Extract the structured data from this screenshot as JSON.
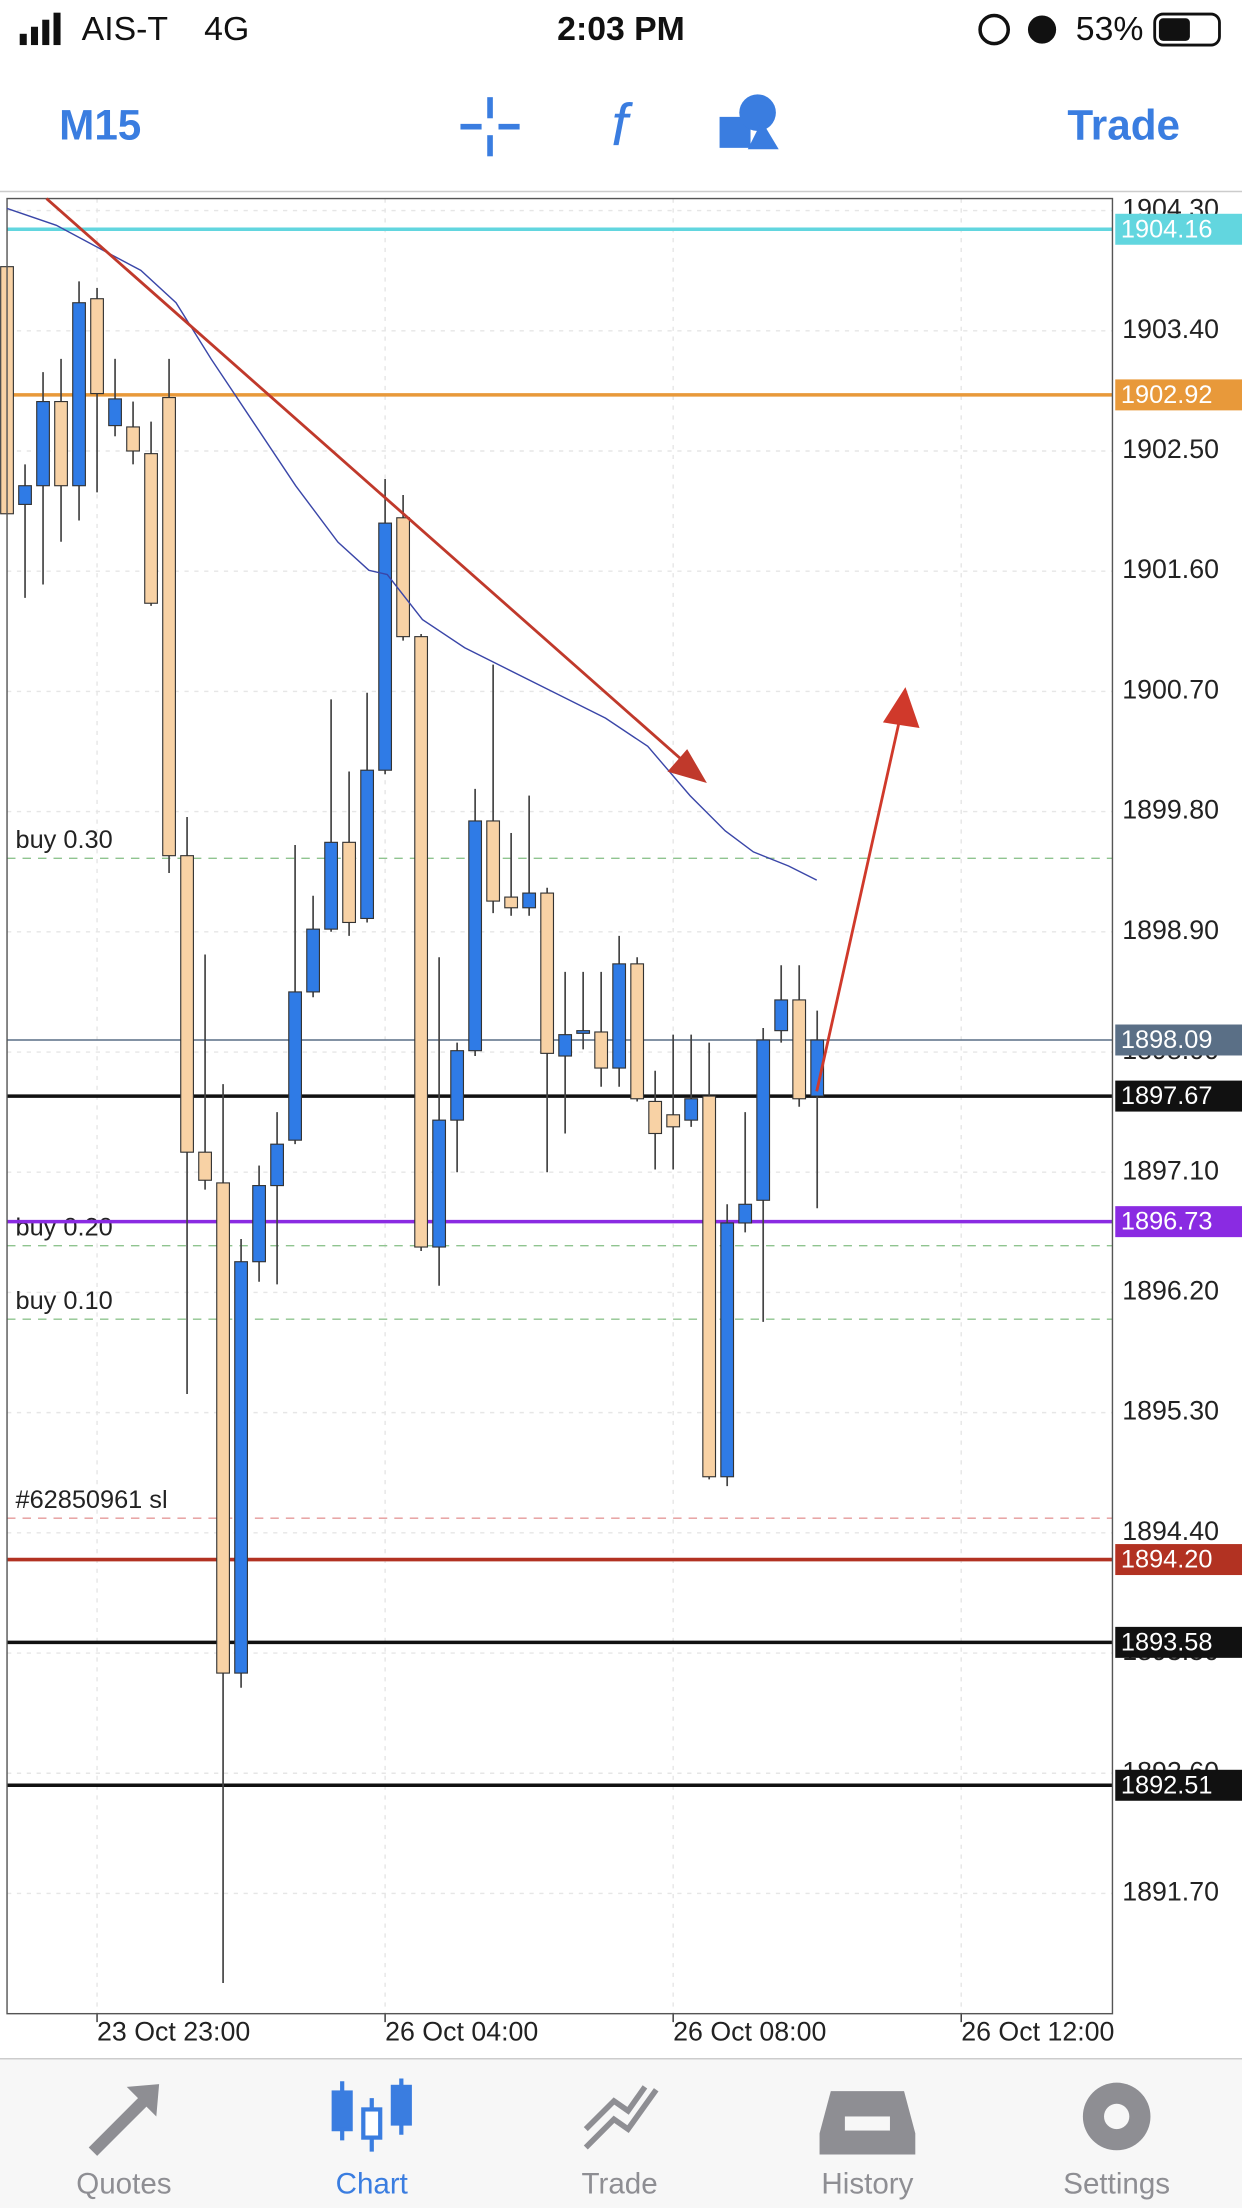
{
  "status_bar": {
    "carrier": "AIS-T",
    "network": "4G",
    "time": "2:03 PM",
    "battery": "53%"
  },
  "toolbar": {
    "timeframe": "M15",
    "trade": "Trade"
  },
  "chart_data": {
    "type": "candlestick",
    "up_color": "#2f7be6",
    "down_color": "#f8d2a5",
    "open": [
      1903.88,
      1902.1,
      1902.24,
      1902.87,
      1902.24,
      1903.64,
      1902.69,
      1902.68,
      1902.48,
      1902.9,
      1899.47,
      1897.25,
      1897.02,
      1893.35,
      1896.43,
      1897.0,
      1897.34,
      1898.45,
      1898.92,
      1899.57,
      1899.0,
      1900.11,
      1902.0,
      1901.11,
      1896.54,
      1897.49,
      1898.01,
      1899.73,
      1899.16,
      1899.08,
      1899.19,
      1897.97,
      1898.14,
      1898.15,
      1897.88,
      1898.66,
      1897.63,
      1897.53,
      1897.49,
      1897.67,
      1894.82,
      1896.72,
      1896.89,
      1898.16,
      1898.39,
      1897.67
    ],
    "high": [
      1903.88,
      1902.4,
      1903.09,
      1903.19,
      1903.77,
      1903.72,
      1903.19,
      1902.87,
      1902.72,
      1903.19,
      1899.76,
      1898.73,
      1897.76,
      1896.6,
      1897.15,
      1897.55,
      1899.55,
      1899.17,
      1900.64,
      1900.1,
      1900.69,
      1902.29,
      1902.17,
      1901.13,
      1898.71,
      1898.07,
      1899.97,
      1900.9,
      1899.64,
      1899.92,
      1899.23,
      1898.6,
      1898.6,
      1898.6,
      1898.87,
      1898.71,
      1897.86,
      1898.13,
      1898.13,
      1898.07,
      1896.86,
      1897.55,
      1898.18,
      1898.65,
      1898.65,
      1898.31
    ],
    "low": [
      1902.03,
      1901.4,
      1901.5,
      1901.82,
      1901.98,
      1902.19,
      1902.61,
      1902.4,
      1901.34,
      1899.34,
      1895.44,
      1896.97,
      1891.03,
      1893.24,
      1896.28,
      1896.26,
      1897.31,
      1898.41,
      1898.9,
      1898.87,
      1898.97,
      1900.08,
      1901.08,
      1896.51,
      1896.25,
      1897.1,
      1897.97,
      1899.04,
      1899.02,
      1899.02,
      1897.1,
      1897.39,
      1898.02,
      1897.74,
      1897.74,
      1897.63,
      1897.12,
      1897.12,
      1897.44,
      1894.8,
      1894.75,
      1896.65,
      1895.98,
      1898.07,
      1897.59,
      1896.83
    ],
    "close": [
      1902.03,
      1902.24,
      1902.87,
      1902.24,
      1903.61,
      1902.93,
      1902.89,
      1902.5,
      1901.36,
      1899.47,
      1897.25,
      1897.04,
      1893.35,
      1896.43,
      1897.0,
      1897.31,
      1898.45,
      1898.92,
      1899.57,
      1898.97,
      1900.11,
      1901.96,
      1901.11,
      1896.54,
      1897.49,
      1898.01,
      1899.73,
      1899.13,
      1899.08,
      1899.19,
      1897.99,
      1898.13,
      1898.16,
      1897.88,
      1898.66,
      1897.65,
      1897.39,
      1897.44,
      1897.65,
      1894.82,
      1896.72,
      1896.86,
      1898.09,
      1898.39,
      1897.65,
      1898.09
    ],
    "ylim": [
      1890.8,
      1904.39
    ],
    "yticks": [
      {
        "value": 1904.3,
        "label": "1904.30"
      },
      {
        "value": 1903.4,
        "label": "1903.40"
      },
      {
        "value": 1902.5,
        "label": "1902.50"
      },
      {
        "value": 1901.6,
        "label": "1901.60"
      },
      {
        "value": 1900.7,
        "label": "1900.70"
      },
      {
        "value": 1899.8,
        "label": "1899.80"
      },
      {
        "value": 1898.9,
        "label": "1898.90"
      },
      {
        "value": 1898,
        "label": "1898.00"
      },
      {
        "value": 1897.1,
        "label": "1897.10"
      },
      {
        "value": 1896.2,
        "label": "1896.20"
      },
      {
        "value": 1895.3,
        "label": "1895.30"
      },
      {
        "value": 1894.4,
        "label": "1894.40"
      },
      {
        "value": 1893.5,
        "label": "1893.50"
      },
      {
        "value": 1892.6,
        "label": "1892.60"
      },
      {
        "value": 1891.7,
        "label": "1891.70"
      }
    ],
    "xlim": [
      0,
      61.4
    ],
    "xticks": [
      {
        "value": 5,
        "label": "23 Oct 23:00"
      },
      {
        "value": 21,
        "label": "26 Oct 04:00"
      },
      {
        "value": 37,
        "label": "26 Oct 08:00"
      },
      {
        "value": 53,
        "label": "26 Oct 12:00"
      }
    ],
    "grid": true,
    "price_lines": [
      {
        "value": 1904.16,
        "color": "#62d6df"
      },
      {
        "value": 1902.92,
        "color": "#e8993a"
      },
      {
        "value": 1898.09,
        "color": "#5a6f86"
      },
      {
        "value": 1897.67,
        "color": "#111111"
      },
      {
        "value": 1896.73,
        "color": "#8a2be2"
      },
      {
        "value": 1894.2,
        "label": "1894.20",
        "color": "#b23222"
      },
      {
        "value": 1893.58,
        "color": "#111111"
      },
      {
        "value": 1892.51,
        "color": "#111111"
      }
    ],
    "order_lines": [
      {
        "label": "buy 0.30",
        "value": 1899.45,
        "color": "#8fc48f"
      },
      {
        "label": "buy 0.20",
        "value": 1896.55,
        "color": "#8fc48f"
      },
      {
        "label": "buy 0.10",
        "value": 1896.0,
        "color": "#8fc48f"
      },
      {
        "label": "#62850961 sl",
        "value": 1894.51,
        "color": "#e59a9a"
      }
    ]
  },
  "tabs": {
    "active": 1,
    "items": [
      "Quotes",
      "Chart",
      "Trade",
      "History",
      "Settings"
    ]
  }
}
